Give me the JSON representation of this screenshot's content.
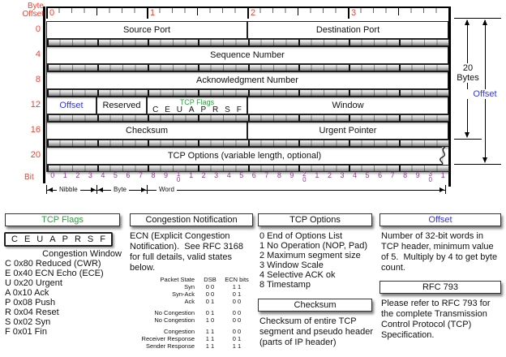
{
  "colors": {
    "red": "#f5402e",
    "purple": "#993399",
    "blue": "#3333ff",
    "green": "#2f9e3f"
  },
  "diagram": {
    "byte_offset_label_line1": "Byte",
    "byte_offset_label_line2": "Offset",
    "byte_numbers": [
      "0",
      "1",
      "2",
      "3"
    ],
    "rows": [
      {
        "label": "0",
        "cells": [
          {
            "name": "source-port",
            "text": "Source Port",
            "bits": 16
          },
          {
            "name": "destination-port",
            "text": "Destination Port",
            "bits": 16
          }
        ]
      },
      {
        "label": "4",
        "cells": [
          {
            "name": "sequence-number",
            "text": "Sequence Number",
            "bits": 32
          }
        ]
      },
      {
        "label": "8",
        "cells": [
          {
            "name": "acknowledgment-number",
            "text": "Acknowledgment Number",
            "bits": 32
          }
        ]
      },
      {
        "label": "12",
        "cells": [
          {
            "name": "offset",
            "text": "Offset",
            "bits": 4,
            "style": "blue"
          },
          {
            "name": "reserved",
            "text": "Reserved",
            "bits": 4
          },
          {
            "name": "tcp-flags",
            "text": "",
            "bits": 8,
            "style": "flags"
          },
          {
            "name": "window",
            "text": "Window",
            "bits": 16
          }
        ]
      },
      {
        "label": "16",
        "cells": [
          {
            "name": "checksum",
            "text": "Checksum",
            "bits": 16
          },
          {
            "name": "urgent-pointer",
            "text": "Urgent Pointer",
            "bits": 16
          }
        ]
      },
      {
        "label": "20",
        "cells": [
          {
            "name": "tcp-options",
            "text": "TCP Options (variable length, optional)",
            "bits": 32,
            "wavy": true
          }
        ]
      }
    ],
    "flags_cell": {
      "title": "TCP Flags",
      "letters": [
        "C",
        "E",
        "U",
        "A",
        "P",
        "R",
        "S",
        "F"
      ]
    },
    "bit_label": "Bit",
    "bit_numbers": [
      "0",
      "1",
      "2",
      "3",
      "4",
      "5",
      "6",
      "7",
      "8",
      "9",
      "1|0",
      "1",
      "2",
      "3",
      "4",
      "5",
      "6",
      "7",
      "8",
      "9",
      "2|0",
      "1",
      "2",
      "3",
      "4",
      "5",
      "6",
      "7",
      "8",
      "9",
      "3|0",
      "1"
    ],
    "scale_labels": {
      "nibble": "Nibble",
      "byte": "Byte",
      "word": "Word"
    },
    "annotations": {
      "bytes_line1": "20",
      "bytes_line2": "Bytes",
      "offset": "Offset"
    }
  },
  "legend": {
    "tcp_flags": {
      "title": "TCP Flags",
      "letters": [
        "C",
        "E",
        "U",
        "A",
        "P",
        "R",
        "S",
        "F"
      ],
      "first_line": "Congestion Window",
      "items": [
        "C 0x80 Reduced (CWR)",
        "E 0x40 ECN Echo (ECE)",
        "U 0x20 Urgent",
        "A 0x10 Ack",
        "P 0x08 Push",
        "R 0x04 Reset",
        "S 0x02 Syn",
        "F 0x01 Fin"
      ]
    },
    "congestion": {
      "title": "Congestion Notification",
      "body": "ECN (Explicit Congestion Notification).  See RFC 3168 for full details, valid states below.",
      "table": {
        "headers": [
          "Packet State",
          "DSB",
          "ECN bits"
        ],
        "rows": [
          [
            "Syn",
            "0 0",
            "1 1"
          ],
          [
            "Syn-Ack",
            "0 0",
            "0 1"
          ],
          [
            "Ack",
            "0 1",
            "0 0"
          ],
          null,
          [
            "No Congestion",
            "0 1",
            "0 0"
          ],
          [
            "No Congestion",
            "1 0",
            "0 0"
          ],
          null,
          [
            "Congestion",
            "1 1",
            "0 0"
          ],
          [
            "Receiver Response",
            "1 1",
            "0 1"
          ],
          [
            "Sender Response",
            "1 1",
            "1 1"
          ]
        ]
      }
    },
    "tcp_options": {
      "title": "TCP Options",
      "items": [
        "0 End of Options List",
        "1 No Operation (NOP, Pad)",
        "2 Maximum segment size",
        "3 Window Scale",
        "4 Selective ACK ok",
        "8 Timestamp"
      ]
    },
    "checksum": {
      "title": "Checksum",
      "body": "Checksum of entire TCP segment and pseudo header (parts of IP header)"
    },
    "offset": {
      "title": "Offset",
      "body": "Number of 32-bit words in TCP header, minimum value of 5.  Multiply by 4 to get byte count."
    },
    "rfc": {
      "title": "RFC 793",
      "body": "Please refer to RFC 793 for the complete Transmission Control Protocol (TCP) Specification."
    }
  }
}
